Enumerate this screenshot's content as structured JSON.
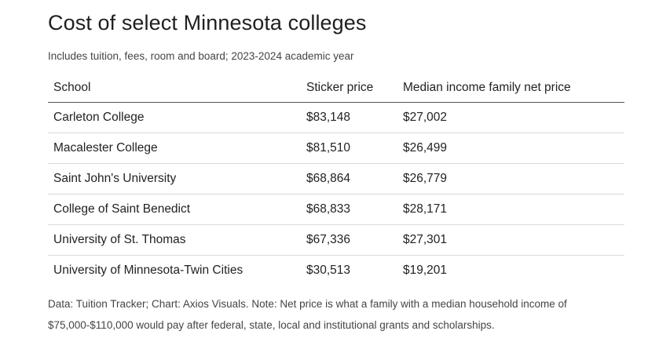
{
  "title": "Cost of select Minnesota colleges",
  "subtitle": "Includes tuition, fees, room and board; 2023-2024 academic year",
  "chart_data": {
    "type": "table",
    "columns": [
      "School",
      "Sticker price",
      "Median income family net price"
    ],
    "rows": [
      [
        "Carleton College",
        "$83,148",
        "$27,002"
      ],
      [
        "Macalester College",
        "$81,510",
        "$26,499"
      ],
      [
        "Saint John's University",
        "$68,864",
        "$26,779"
      ],
      [
        "College of Saint Benedict",
        "$68,833",
        "$28,171"
      ],
      [
        "University of St. Thomas",
        "$67,336",
        "$27,301"
      ],
      [
        "University of Minnesota-Twin Cities",
        "$30,513",
        "$19,201"
      ]
    ]
  },
  "footnote": {
    "line1": "Data: Tuition Tracker; Chart: Axios Visuals. Note: Net price is what a family with a median household income of",
    "line2": "$75,000-$110,000 would pay after federal, state, local and institutional grants and scholarships."
  }
}
